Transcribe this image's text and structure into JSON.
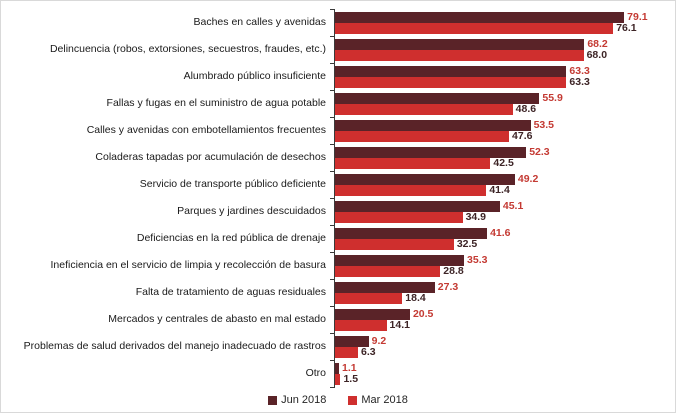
{
  "chart_data": {
    "type": "bar",
    "orientation": "horizontal",
    "title": "",
    "xlabel": "",
    "ylabel": "",
    "xlim": [
      0,
      93
    ],
    "grid": false,
    "value_labels": true,
    "legend_position": "bottom-center",
    "categories": [
      "Baches en calles y avenidas",
      "Delincuencia (robos, extorsiones, secuestros, fraudes, etc.)",
      "Alumbrado público insuficiente",
      "Fallas y fugas en el suministro de agua potable",
      "Calles y avenidas con embotellamientos frecuentes",
      "Coladeras tapadas por acumulación de desechos",
      "Servicio de transporte público deficiente",
      "Parques y jardines descuidados",
      "Deficiencias en la red pública de drenaje",
      "Ineficiencia en el servicio de limpia y recolección de basura",
      "Falta de tratamiento de aguas residuales",
      "Mercados y centrales de abasto en mal estado",
      "Problemas de salud derivados del manejo inadecuado de rastros",
      "Otro"
    ],
    "series": [
      {
        "name": "Jun 2018",
        "color": "#5a2328",
        "label_color": "#c43a33",
        "values": [
          79.1,
          68.2,
          63.3,
          55.9,
          53.5,
          52.3,
          49.2,
          45.1,
          41.6,
          35.3,
          27.3,
          20.5,
          9.2,
          1.1
        ]
      },
      {
        "name": "Mar 2018",
        "color": "#cf2f2e",
        "label_color": "#3d2426",
        "values": [
          76.1,
          68.0,
          63.3,
          48.6,
          47.6,
          42.5,
          41.4,
          34.9,
          32.5,
          28.8,
          18.4,
          14.1,
          6.3,
          1.5
        ]
      }
    ],
    "axis_color": "#3a3a3a",
    "frame_color": "#d9d9d9"
  }
}
